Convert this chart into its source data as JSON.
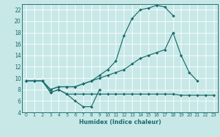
{
  "xlabel": "Humidex (Indice chaleur)",
  "background_color": "#c8e8e8",
  "grid_color": "#ffffff",
  "line_color": "#1a6b6b",
  "xlim": [
    -0.5,
    23.5
  ],
  "ylim": [
    4,
    23
  ],
  "xticks": [
    0,
    1,
    2,
    3,
    4,
    5,
    6,
    7,
    8,
    9,
    10,
    11,
    12,
    13,
    14,
    15,
    16,
    17,
    18,
    19,
    20,
    21,
    22,
    23
  ],
  "yticks": [
    4,
    6,
    8,
    10,
    12,
    14,
    16,
    18,
    20,
    22
  ],
  "series": [
    {
      "x": [
        0,
        1,
        2,
        3,
        4,
        5,
        6,
        7,
        8,
        9,
        10,
        11,
        12,
        13,
        14,
        15,
        16,
        17,
        18
      ],
      "y": [
        9.5,
        9.5,
        9.5,
        8.0,
        8.5,
        8.5,
        8.5,
        9.0,
        9.5,
        10.5,
        11.5,
        13.0,
        17.5,
        20.5,
        22.0,
        22.3,
        22.8,
        22.5,
        21.0
      ]
    },
    {
      "x": [
        0,
        1,
        2,
        3,
        4,
        5,
        6,
        7,
        8,
        9,
        10,
        11,
        12,
        13,
        14,
        15,
        16,
        17,
        18,
        19,
        20,
        21
      ],
      "y": [
        9.5,
        9.5,
        9.5,
        8.0,
        8.5,
        8.5,
        8.5,
        9.0,
        9.5,
        10.0,
        10.5,
        11.0,
        11.5,
        12.5,
        13.5,
        14.0,
        14.5,
        15.0,
        18.0,
        14.0,
        11.0,
        9.5
      ]
    },
    {
      "x": [
        0,
        1,
        2,
        3,
        4,
        5,
        6,
        7,
        8,
        9,
        10,
        11,
        12,
        13,
        14,
        15,
        16,
        17,
        18,
        19,
        20,
        21,
        22,
        23
      ],
      "y": [
        9.5,
        9.5,
        9.5,
        7.5,
        8.0,
        7.2,
        7.2,
        7.2,
        7.2,
        7.2,
        7.2,
        7.2,
        7.2,
        7.2,
        7.2,
        7.2,
        7.2,
        7.2,
        7.2,
        7.0,
        7.0,
        7.0,
        7.0,
        7.0
      ]
    },
    {
      "x": [
        0,
        1,
        2,
        3,
        4,
        5,
        6,
        7,
        8,
        9
      ],
      "y": [
        9.5,
        9.5,
        9.5,
        7.5,
        8.0,
        7.2,
        6.0,
        5.0,
        5.0,
        8.0
      ]
    }
  ]
}
